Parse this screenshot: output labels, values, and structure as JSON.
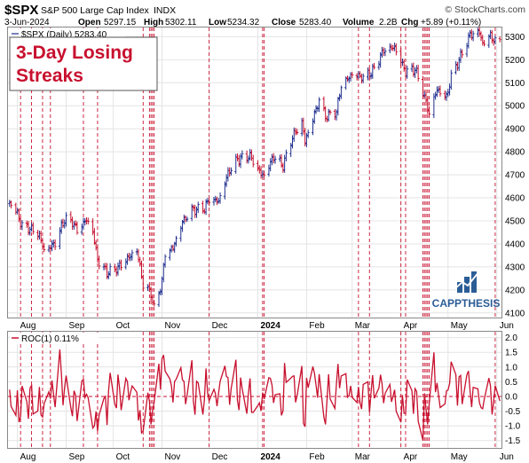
{
  "header": {
    "symbol": "$SPX",
    "name": "S&P 500 Large Cap Index",
    "exchange": "INDX",
    "watermark": "© StockCharts.com",
    "date": "3-Jun-2024",
    "open_label": "Open",
    "open": "5297.15",
    "high_label": "High",
    "high": "5302.11",
    "low_label": "Low",
    "low": "5234.32",
    "close_label": "Close",
    "close": "5283.40",
    "volume_label": "Volume",
    "volume": "2.2B",
    "chg_label": "Chg",
    "chg": "+5.89 (+0.11%)"
  },
  "legend": {
    "price": "$SPX (Daily) 5283.40",
    "roc": "ROC(1) 0.11%"
  },
  "annotation": {
    "line1": "3-Day Losing",
    "line2": "Streaks"
  },
  "logo": {
    "text": "CAPPTHESIS"
  },
  "colors": {
    "up": "#1f2f8f",
    "down": "#c8102e",
    "roc": "#c8102e",
    "streak": "#c8102e",
    "logo": "#2a5d96"
  },
  "chart_data": [
    {
      "type": "line",
      "title": "$SPX (Daily) 5283.40",
      "x_ticks": [
        "Aug",
        "Sep",
        "Oct",
        "Nov",
        "Dec",
        "2024",
        "Feb",
        "Mar",
        "Apr",
        "May",
        "Jun"
      ],
      "y_ticks": [
        4100,
        4200,
        4300,
        4400,
        4500,
        4600,
        4700,
        4800,
        4900,
        5000,
        5100,
        5200,
        5300
      ],
      "ylim": [
        4080,
        5340
      ],
      "x_range": [
        "2023-07-26",
        "2024-06-04"
      ],
      "series": [
        {
          "values": [
            [
              "2023-07-26",
              4565
            ],
            [
              "2023-07-28",
              4582
            ],
            [
              "2023-08-02",
              4513
            ],
            [
              "2023-08-04",
              4478
            ],
            [
              "2023-08-09",
              4467
            ],
            [
              "2023-08-15",
              4437
            ],
            [
              "2023-08-18",
              4370
            ],
            [
              "2023-08-22",
              4387
            ],
            [
              "2023-08-25",
              4405
            ],
            [
              "2023-08-31",
              4507
            ],
            [
              "2023-09-05",
              4496
            ],
            [
              "2023-09-08",
              4457
            ],
            [
              "2023-09-14",
              4505
            ],
            [
              "2023-09-18",
              4453
            ],
            [
              "2023-09-21",
              4330
            ],
            [
              "2023-09-27",
              4275
            ],
            [
              "2023-10-02",
              4288
            ],
            [
              "2023-10-06",
              4308
            ],
            [
              "2023-10-12",
              4349
            ],
            [
              "2023-10-16",
              4373
            ],
            [
              "2023-10-20",
              4224
            ],
            [
              "2023-10-25",
              4186
            ],
            [
              "2023-10-27",
              4117
            ],
            [
              "2023-11-01",
              4237
            ],
            [
              "2023-11-03",
              4358
            ],
            [
              "2023-11-08",
              4382
            ],
            [
              "2023-11-14",
              4495
            ],
            [
              "2023-11-20",
              4547
            ],
            [
              "2023-11-28",
              4554
            ],
            [
              "2023-12-01",
              4594
            ],
            [
              "2023-12-07",
              4585
            ],
            [
              "2023-12-13",
              4707
            ],
            [
              "2023-12-19",
              4768
            ],
            [
              "2023-12-27",
              4781
            ],
            [
              "2024-01-03",
              4704
            ],
            [
              "2024-01-05",
              4697
            ],
            [
              "2024-01-11",
              4780
            ],
            [
              "2024-01-17",
              4739
            ],
            [
              "2024-01-23",
              4864
            ],
            [
              "2024-01-29",
              4927
            ],
            [
              "2024-01-31",
              4845
            ],
            [
              "2024-02-05",
              4942
            ],
            [
              "2024-02-09",
              5026
            ],
            [
              "2024-02-13",
              4953
            ],
            [
              "2024-02-20",
              4975
            ],
            [
              "2024-02-23",
              5088
            ],
            [
              "2024-03-01",
              5137
            ],
            [
              "2024-03-08",
              5123
            ],
            [
              "2024-03-14",
              5150
            ],
            [
              "2024-03-21",
              5241
            ],
            [
              "2024-03-28",
              5254
            ],
            [
              "2024-04-04",
              5147
            ],
            [
              "2024-04-10",
              5160
            ],
            [
              "2024-04-15",
              5061
            ],
            [
              "2024-04-19",
              4967
            ],
            [
              "2024-04-24",
              5071
            ],
            [
              "2024-04-30",
              5035
            ],
            [
              "2024-05-03",
              5127
            ],
            [
              "2024-05-09",
              5214
            ],
            [
              "2024-05-15",
              5308
            ],
            [
              "2024-05-21",
              5321
            ],
            [
              "2024-05-23",
              5268
            ],
            [
              "2024-05-28",
              5306
            ],
            [
              "2024-05-31",
              5277
            ],
            [
              "2024-06-03",
              5283
            ]
          ]
        }
      ]
    },
    {
      "type": "line",
      "title": "ROC(1) 0.11%",
      "x_ticks": [
        "Aug",
        "Sep",
        "Oct",
        "Nov",
        "Dec",
        "2024",
        "Feb",
        "Mar",
        "Apr",
        "May",
        "Jun"
      ],
      "y_ticks": [
        -1.5,
        -1.0,
        -0.5,
        0.0,
        0.5,
        1.0,
        1.5,
        2.0
      ],
      "ylim": [
        -1.75,
        2.2
      ],
      "zero_line": 0.0
    }
  ],
  "streak_dates": [
    "2023-08-03",
    "2023-08-10",
    "2023-08-17",
    "2023-08-22",
    "2023-09-12",
    "2023-09-21",
    "2023-10-20",
    "2023-10-24",
    "2023-10-25",
    "2023-10-26",
    "2023-10-27",
    "2023-12-01",
    "2024-01-04",
    "2024-01-05",
    "2024-03-05",
    "2024-03-12",
    "2024-04-01",
    "2024-04-04",
    "2024-04-15",
    "2024-04-16",
    "2024-04-17",
    "2024-04-18",
    "2024-04-19",
    "2024-05-31"
  ]
}
